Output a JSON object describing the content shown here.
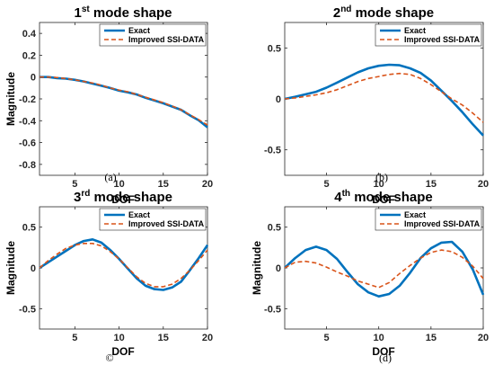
{
  "colors": {
    "exact": "#0072BD",
    "improved": "#D95319",
    "axis": "#262626"
  },
  "chart_data": [
    {
      "type": "line",
      "title": {
        "ord": "1",
        "sup": "st",
        "rest": " mode shape"
      },
      "xlabel": "DOF",
      "ylabel": "Magnitude",
      "xlim": [
        1,
        20
      ],
      "ylim": [
        -0.9,
        0.5
      ],
      "xticks": [
        5,
        10,
        15,
        20
      ],
      "yticks": [
        0.4,
        0.2,
        0,
        -0.2,
        -0.4,
        -0.6,
        -0.8
      ],
      "yticklabels": [
        "0.4",
        "0.2",
        "0",
        "-0.2",
        "-0.4",
        "-0.6",
        "-0.8"
      ],
      "legend": "top-right",
      "caption": "(a)",
      "series": [
        {
          "name": "Exact",
          "style": "solid",
          "x": [
            1,
            2,
            3,
            4,
            5,
            6,
            7,
            8,
            9,
            10,
            11,
            12,
            13,
            14,
            15,
            16,
            17,
            18,
            19,
            20
          ],
          "y": [
            0,
            0,
            -0.01,
            -0.015,
            -0.025,
            -0.04,
            -0.06,
            -0.08,
            -0.1,
            -0.125,
            -0.14,
            -0.16,
            -0.19,
            -0.215,
            -0.24,
            -0.27,
            -0.3,
            -0.35,
            -0.395,
            -0.46
          ]
        },
        {
          "name": "Improved SSI-DATA",
          "style": "dashed",
          "x": [
            1,
            2,
            3,
            4,
            5,
            6,
            7,
            8,
            9,
            10,
            11,
            12,
            13,
            14,
            15,
            16,
            17,
            18,
            19,
            20
          ],
          "y": [
            0,
            0,
            -0.005,
            -0.015,
            -0.025,
            -0.04,
            -0.055,
            -0.075,
            -0.1,
            -0.12,
            -0.135,
            -0.16,
            -0.185,
            -0.21,
            -0.235,
            -0.265,
            -0.3,
            -0.345,
            -0.39,
            -0.44
          ]
        }
      ]
    },
    {
      "type": "line",
      "title": {
        "ord": "2",
        "sup": "nd",
        "rest": " mode shape"
      },
      "xlabel": "DOF",
      "ylabel": "",
      "xlim": [
        1,
        20
      ],
      "ylim": [
        -0.75,
        0.75
      ],
      "xticks": [
        5,
        10,
        15,
        20
      ],
      "yticks": [
        0.5,
        0,
        -0.5
      ],
      "yticklabels": [
        "0.5",
        "0",
        "-0.5"
      ],
      "legend": "top-right",
      "caption": "(b)",
      "series": [
        {
          "name": "Exact",
          "style": "solid",
          "x": [
            1,
            2,
            3,
            4,
            5,
            6,
            7,
            8,
            9,
            10,
            11,
            12,
            13,
            14,
            15,
            16,
            17,
            18,
            19,
            20
          ],
          "y": [
            0,
            0.02,
            0.045,
            0.07,
            0.11,
            0.16,
            0.21,
            0.26,
            0.3,
            0.325,
            0.335,
            0.33,
            0.3,
            0.255,
            0.18,
            0.08,
            -0.02,
            -0.13,
            -0.25,
            -0.36
          ]
        },
        {
          "name": "Improved SSI-DATA",
          "style": "dashed",
          "x": [
            1,
            2,
            3,
            4,
            5,
            6,
            7,
            8,
            9,
            10,
            11,
            12,
            13,
            14,
            15,
            16,
            17,
            18,
            19,
            20
          ],
          "y": [
            0,
            0.01,
            0.025,
            0.04,
            0.06,
            0.09,
            0.13,
            0.17,
            0.2,
            0.22,
            0.24,
            0.25,
            0.24,
            0.2,
            0.14,
            0.07,
            0,
            -0.06,
            -0.14,
            -0.23
          ]
        }
      ]
    },
    {
      "type": "line",
      "title": {
        "ord": "3",
        "sup": "rd",
        "rest": " mode shape"
      },
      "xlabel": "DOF",
      "ylabel": "Magnitude",
      "xlim": [
        1,
        20
      ],
      "ylim": [
        -0.75,
        0.75
      ],
      "xticks": [
        5,
        10,
        15,
        20
      ],
      "yticks": [
        0.5,
        0,
        -0.5
      ],
      "yticklabels": [
        "0.5",
        "0",
        "-0.5"
      ],
      "legend": "top-right",
      "caption": "©",
      "series": [
        {
          "name": "Exact",
          "style": "solid",
          "x": [
            1,
            2,
            3,
            4,
            5,
            6,
            7,
            8,
            9,
            10,
            11,
            12,
            13,
            14,
            15,
            16,
            17,
            18,
            19,
            20
          ],
          "y": [
            0,
            0.07,
            0.14,
            0.21,
            0.28,
            0.33,
            0.35,
            0.31,
            0.22,
            0.11,
            -0.01,
            -0.13,
            -0.22,
            -0.26,
            -0.27,
            -0.24,
            -0.17,
            -0.03,
            0.12,
            0.28
          ]
        },
        {
          "name": "Improved SSI-DATA",
          "style": "dashed",
          "x": [
            1,
            2,
            3,
            4,
            5,
            6,
            7,
            8,
            9,
            10,
            11,
            12,
            13,
            14,
            15,
            16,
            17,
            18,
            19,
            20
          ],
          "y": [
            0,
            0.09,
            0.17,
            0.24,
            0.28,
            0.3,
            0.3,
            0.27,
            0.2,
            0.11,
            0,
            -0.11,
            -0.19,
            -0.23,
            -0.23,
            -0.2,
            -0.13,
            -0.03,
            0.09,
            0.22
          ]
        }
      ]
    },
    {
      "type": "line",
      "title": {
        "ord": "4",
        "sup": "th",
        "rest": " mode shape"
      },
      "xlabel": "DOF",
      "ylabel": "Magnitude",
      "xlim": [
        1,
        20
      ],
      "ylim": [
        -0.75,
        0.75
      ],
      "xticks": [
        5,
        10,
        15,
        20
      ],
      "yticks": [
        0.5,
        0,
        -0.5
      ],
      "yticklabels": [
        "0.5",
        "0",
        "-0.5"
      ],
      "legend": "top-right",
      "caption": "(d)",
      "series": [
        {
          "name": "Exact",
          "style": "solid",
          "x": [
            1,
            2,
            3,
            4,
            5,
            6,
            7,
            8,
            9,
            10,
            11,
            12,
            13,
            14,
            15,
            16,
            17,
            18,
            19,
            20
          ],
          "y": [
            0,
            0.12,
            0.22,
            0.26,
            0.22,
            0.11,
            -0.05,
            -0.2,
            -0.3,
            -0.35,
            -0.32,
            -0.22,
            -0.06,
            0.12,
            0.24,
            0.31,
            0.32,
            0.2,
            -0.02,
            -0.33
          ]
        },
        {
          "name": "Improved SSI-DATA",
          "style": "dashed",
          "x": [
            1,
            2,
            3,
            4,
            5,
            6,
            7,
            8,
            9,
            10,
            11,
            12,
            13,
            14,
            15,
            16,
            17,
            18,
            19,
            20
          ],
          "y": [
            0,
            0.07,
            0.08,
            0.06,
            0.01,
            -0.05,
            -0.1,
            -0.16,
            -0.2,
            -0.24,
            -0.18,
            -0.07,
            0.03,
            0.12,
            0.19,
            0.22,
            0.2,
            0.13,
            0.02,
            -0.13
          ]
        }
      ]
    }
  ]
}
